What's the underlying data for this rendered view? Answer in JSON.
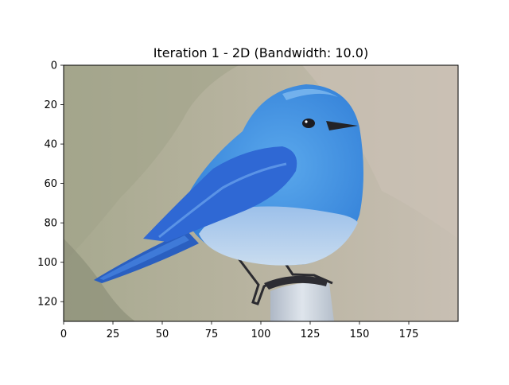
{
  "figure": {
    "title": "Iteration 1 - 2D (Bandwidth: 10.0)"
  },
  "chart_data": {
    "type": "image",
    "title": "Iteration 1 - 2D (Bandwidth: 10.0)",
    "xlabel": "",
    "ylabel": "",
    "xlim": [
      0,
      200
    ],
    "ylim": [
      130,
      0
    ],
    "x_ticks": [
      0,
      25,
      50,
      75,
      100,
      125,
      150,
      175
    ],
    "y_ticks": [
      0,
      20,
      40,
      60,
      80,
      100,
      120
    ],
    "grid": false,
    "image_content": "mountain-bluebird-perched-on-post",
    "colors": {
      "bird_blue": "#3d8fe0",
      "wing_blue": "#2f6bd6",
      "belly_light": "#b9d2ee",
      "bg_left": "#a3a68d",
      "bg_right": "#c7bdb0",
      "post": "#cfd6e0"
    }
  }
}
